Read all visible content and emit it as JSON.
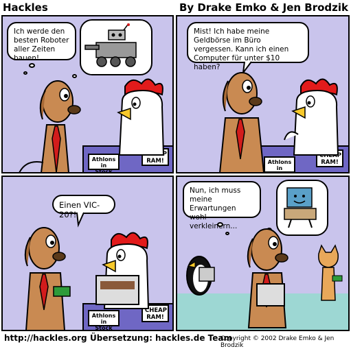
{
  "header": {
    "title": "Hackles",
    "byline": "By Drake Emko & Jen Brodzik"
  },
  "panels": [
    {
      "bubble": "Ich werde den besten Roboter aller Zeiten bauen!",
      "signs": [
        "Athlons in Stock",
        "CHEAP RAM!"
      ]
    },
    {
      "bubble": "Mist! Ich habe meine Geldbörse im Büro vergessen. Kann ich einen Computer für unter $10 haben?",
      "signs": [
        "Athlons in Stock",
        "CHEAP RAM!"
      ]
    },
    {
      "bubble": "Einen VIC-20?!",
      "signs": [
        "Athlons in Stock",
        "CHEAP RAM!"
      ]
    },
    {
      "bubble": "Nun, ich muss meine Erwartungen wohl verkleinern...",
      "signs": []
    }
  ],
  "footer": {
    "url": "http://hackles.org",
    "translation": "Übersetzung: hackles.de Team",
    "copyright": "Copyright © 2002 Drake Emko & Jen Brodzik"
  },
  "colors": {
    "panel_bg": "#c9c4ec",
    "counter": "#6f67c4",
    "dog": "#c98a52",
    "tie": "#d21c1c",
    "comb": "#e21b1b",
    "beak": "#f7c92b",
    "floor": "#9dd7d3"
  }
}
